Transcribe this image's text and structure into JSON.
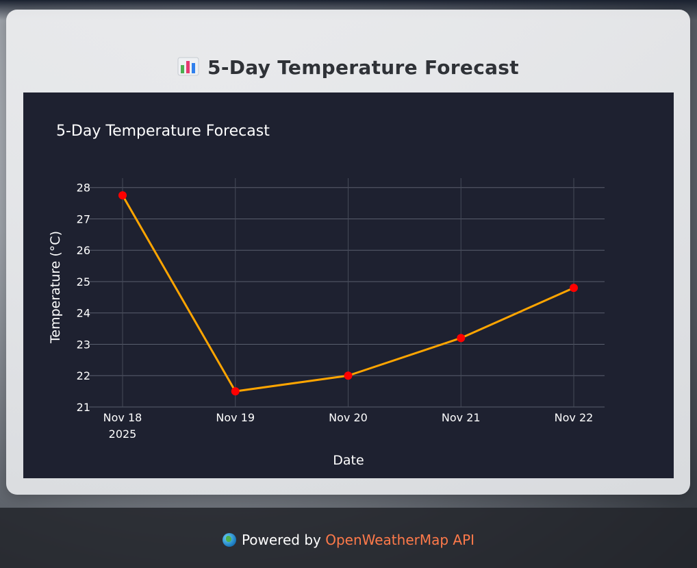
{
  "page": {
    "card_title": "5-Day Temperature Forecast",
    "title_icon": "bar-chart-icon"
  },
  "footer": {
    "icon": "globe-icon",
    "powered_by": "Powered by",
    "api_link": "OpenWeatherMap API",
    "link_color": "#ff7a4a"
  },
  "chart_data": {
    "type": "line",
    "title": "5-Day Temperature Forecast",
    "xlabel": "Date",
    "ylabel": "Temperature (°C)",
    "x": [
      "Nov 18",
      "Nov 19",
      "Nov 20",
      "Nov 21",
      "Nov 22"
    ],
    "x_year_label": "2025",
    "ylim": [
      21,
      28.3
    ],
    "yticks": [
      21,
      22,
      23,
      24,
      25,
      26,
      27,
      28
    ],
    "series": [
      {
        "values": [
          27.75,
          21.5,
          22.0,
          23.2,
          24.8
        ],
        "line_color": "#ffa500",
        "marker_color": "#ff0000"
      }
    ],
    "grid": true,
    "legend": "none",
    "background": "#1e2130"
  }
}
